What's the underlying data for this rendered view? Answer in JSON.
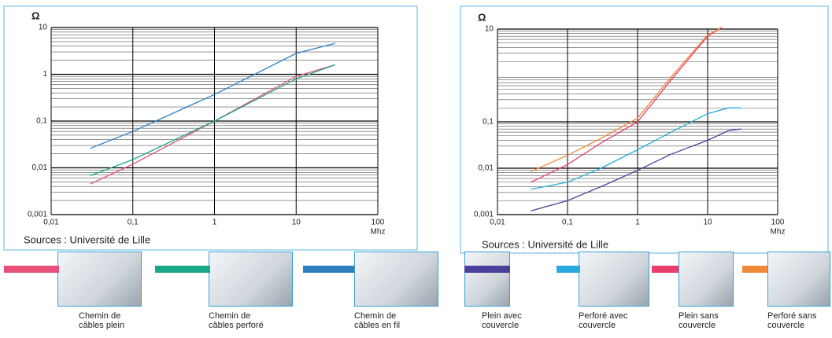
{
  "chart_data": [
    {
      "type": "line",
      "y_label": "Ω",
      "x_label": "Mhz",
      "source": "Sources : Université de Lille",
      "xlog": true,
      "ylog": true,
      "grid": true,
      "xlim": [
        0.01,
        100
      ],
      "ylim": [
        0.001,
        10
      ],
      "xticks": [
        {
          "value": 0.01,
          "label": "0,01"
        },
        {
          "value": 0.1,
          "label": "0,1"
        },
        1,
        10,
        100
      ],
      "yticks": [
        {
          "value": 0.001,
          "label": "0,001"
        },
        {
          "value": 0.01,
          "label": "0,01"
        },
        {
          "value": 0.1,
          "label": "0,1"
        },
        1,
        10
      ],
      "series": [
        {
          "name": "Chemin de câbles plein",
          "color": "#e8507a",
          "x": [
            0.03,
            0.1,
            1,
            10,
            30
          ],
          "values": [
            0.0045,
            0.012,
            0.1,
            0.9,
            1.6
          ]
        },
        {
          "name": "Chemin de câbles perforé",
          "color": "#1aa88a",
          "x": [
            0.03,
            0.1,
            1,
            10,
            30
          ],
          "values": [
            0.0068,
            0.015,
            0.1,
            0.8,
            1.6
          ]
        },
        {
          "name": "Chemin de câbles en fil",
          "color": "#2e7fc2",
          "x": [
            0.03,
            0.1,
            1,
            10,
            30
          ],
          "values": [
            0.026,
            0.06,
            0.37,
            2.8,
            4.6
          ]
        }
      ]
    },
    {
      "type": "line",
      "y_label": "Ω",
      "x_label": "Mhz",
      "source": "Sources : Université de Lille",
      "xlog": true,
      "ylog": true,
      "grid": true,
      "xlim": [
        0.01,
        100
      ],
      "ylim": [
        0.001,
        10
      ],
      "xticks": [
        {
          "value": 0.01,
          "label": "0,01"
        },
        {
          "value": 0.1,
          "label": "0,1"
        },
        1,
        10,
        100
      ],
      "yticks": [
        {
          "value": 0.001,
          "label": "0,001"
        },
        {
          "value": 0.01,
          "label": "0,01"
        },
        {
          "value": 0.1,
          "label": "0,1"
        },
        10
      ],
      "series": [
        {
          "name": "Plein avec couvercle",
          "color": "#4a3f9a",
          "x": [
            0.03,
            0.1,
            0.3,
            1,
            3,
            10,
            20,
            30
          ],
          "values": [
            0.0012,
            0.002,
            0.004,
            0.009,
            0.02,
            0.04,
            0.065,
            0.07
          ]
        },
        {
          "name": "Perforé avec couvercle",
          "color": "#29a9e0",
          "x": [
            0.03,
            0.1,
            0.3,
            1,
            3,
            10,
            20,
            30
          ],
          "values": [
            0.0035,
            0.005,
            0.01,
            0.025,
            0.06,
            0.15,
            0.2,
            0.2
          ]
        },
        {
          "name": "Plein sans couvercle",
          "color": "#e83e6b",
          "x": [
            0.03,
            0.1,
            0.3,
            1,
            3,
            10,
            16
          ],
          "values": [
            0.005,
            0.012,
            0.035,
            0.1,
            0.8,
            7,
            11
          ]
        },
        {
          "name": "Perforé sans couvercle",
          "color": "#f0883a",
          "x": [
            0.03,
            0.1,
            0.3,
            1,
            3,
            10,
            16
          ],
          "values": [
            0.0085,
            0.019,
            0.044,
            0.12,
            0.92,
            7.5,
            11
          ]
        }
      ]
    }
  ]
}
